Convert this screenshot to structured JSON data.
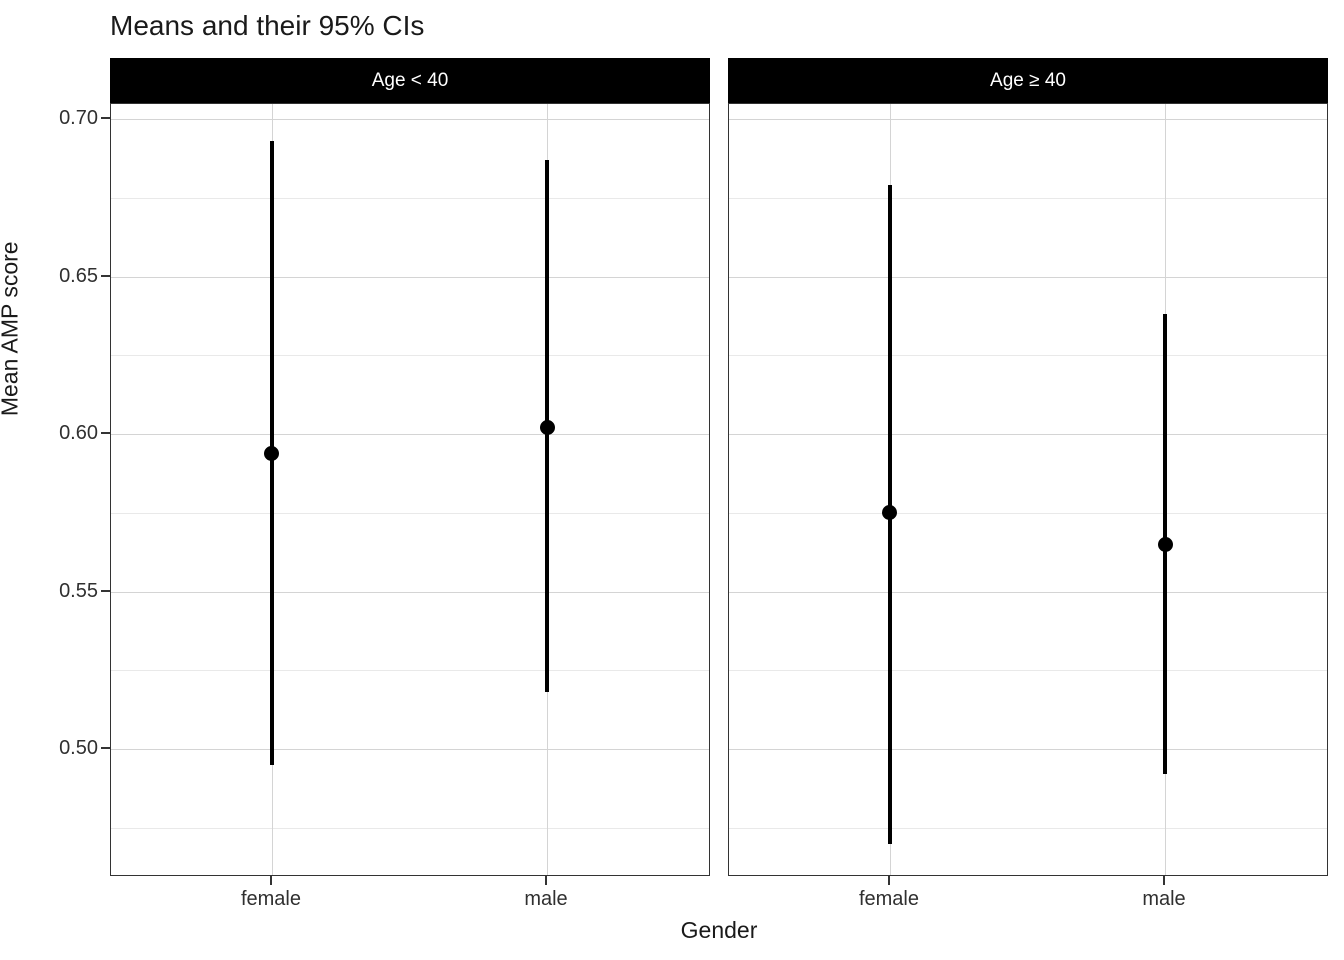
{
  "chart_data": {
    "type": "scatter",
    "title": "Means and their 95% CIs",
    "xlabel": "Gender",
    "ylabel": "Mean AMP score",
    "categories": [
      "female",
      "male"
    ],
    "facets": [
      {
        "label": "Age < 40",
        "series": [
          {
            "category": "female",
            "mean": 0.594,
            "ci_low": 0.495,
            "ci_high": 0.693
          },
          {
            "category": "male",
            "mean": 0.602,
            "ci_low": 0.518,
            "ci_high": 0.687
          }
        ]
      },
      {
        "label": "Age ≥ 40",
        "series": [
          {
            "category": "female",
            "mean": 0.575,
            "ci_low": 0.47,
            "ci_high": 0.679
          },
          {
            "category": "male",
            "mean": 0.565,
            "ci_low": 0.492,
            "ci_high": 0.638
          }
        ]
      }
    ],
    "error_bars": "95% CI",
    "ylim": [
      0.459,
      0.705
    ],
    "y_major_ticks": [
      0.5,
      0.55,
      0.6,
      0.65,
      0.7
    ],
    "y_minor_ticks": [
      0.475,
      0.525,
      0.575,
      0.625,
      0.675
    ],
    "grid": true,
    "legend_position": "none",
    "colors": {
      "strip_background": "#000000",
      "strip_text": "#ffffff",
      "point_and_ci": "#000000",
      "major_gridline": "#d4d4d4",
      "minor_gridline": "#e9e9e9",
      "panel_border": "#333333",
      "axis_text": "#303030"
    }
  }
}
